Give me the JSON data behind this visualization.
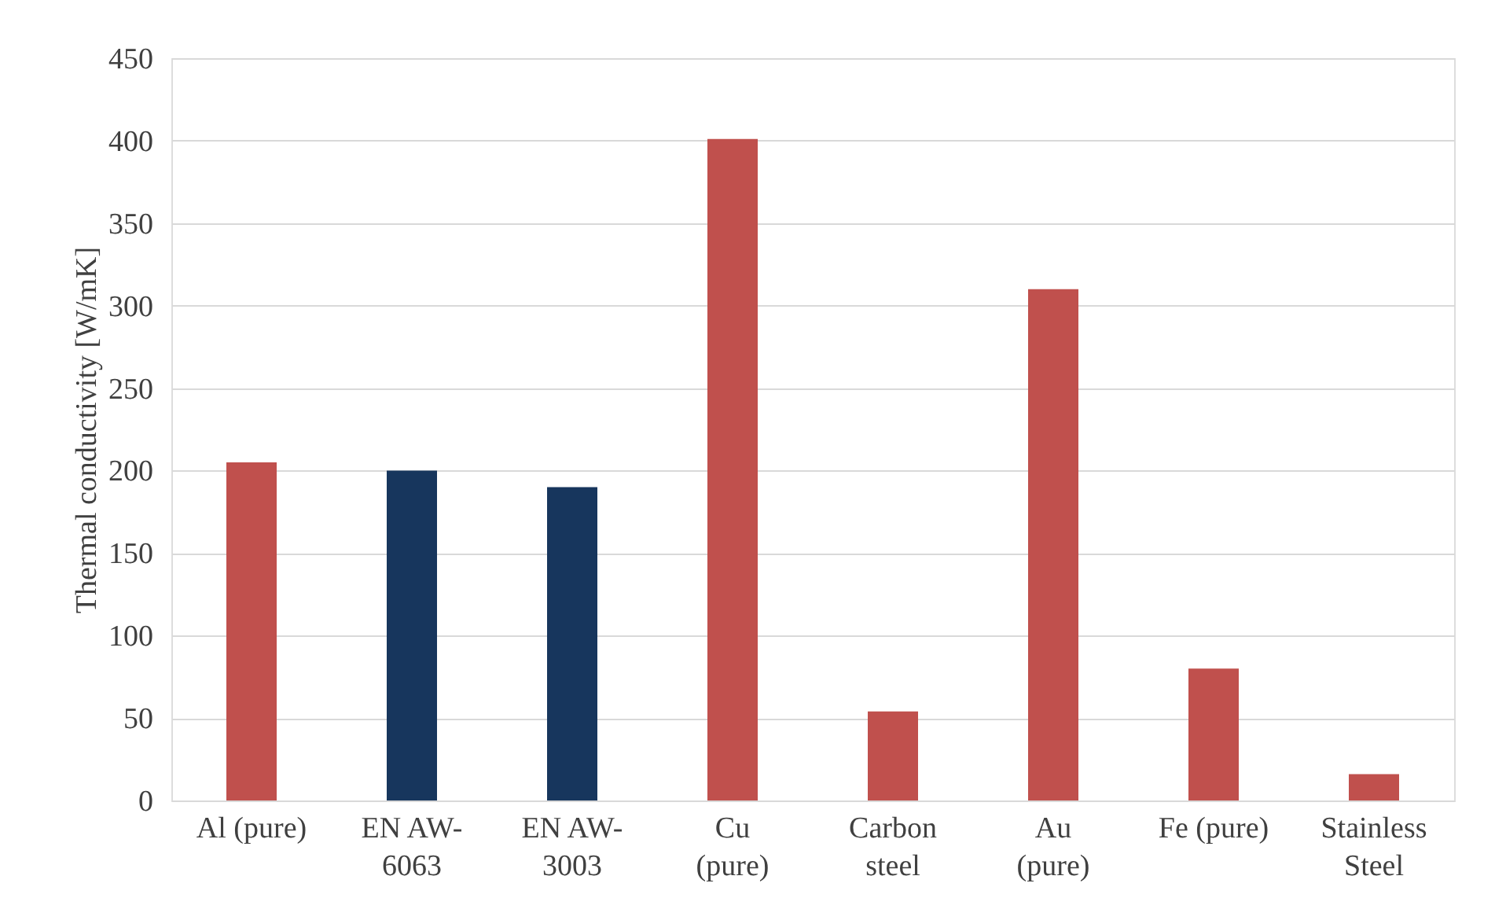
{
  "chart_data": {
    "type": "bar",
    "ylabel": "Thermal conductivity [W/mK]",
    "categories": [
      "Al (pure)",
      "EN AW-\n6063",
      "EN AW-\n3003",
      "Cu\n(pure)",
      "Carbon\nsteel",
      "Au\n(pure)",
      "Fe (pure)",
      "Stainless\nSteel"
    ],
    "values": [
      205,
      200,
      190,
      401,
      54,
      310,
      80,
      16
    ],
    "colors": [
      "#c0504d",
      "#17365d",
      "#17365d",
      "#c0504d",
      "#c0504d",
      "#c0504d",
      "#c0504d",
      "#c0504d"
    ],
    "ylim": [
      0,
      450
    ],
    "yticks": [
      0,
      50,
      100,
      150,
      200,
      250,
      300,
      350,
      400,
      450
    ],
    "grid": "y"
  }
}
